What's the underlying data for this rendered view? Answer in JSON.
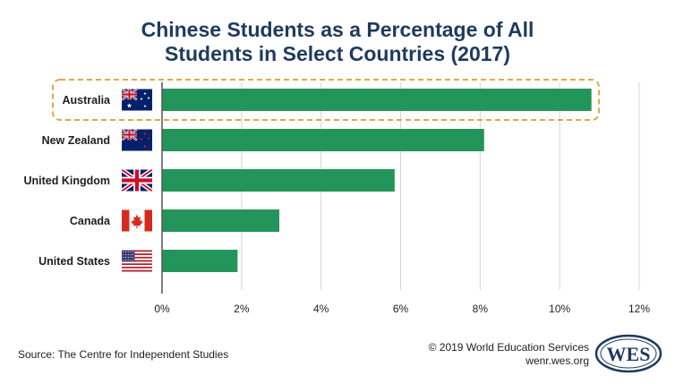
{
  "chart_data": {
    "type": "bar",
    "orientation": "horizontal",
    "title_lines": [
      "Chinese Students as a Percentage of All",
      "Students in Select Countries (2017)"
    ],
    "categories": [
      "Australia",
      "New Zealand",
      "United Kingdom",
      "Canada",
      "United States"
    ],
    "values": [
      10.8,
      8.1,
      5.85,
      2.95,
      1.9
    ],
    "flags": [
      "australia-flag",
      "new-zealand-flag",
      "united-kingdom-flag",
      "canada-flag",
      "united-states-flag"
    ],
    "highlighted_category": "Australia",
    "xlim": [
      0,
      12
    ],
    "x_ticks": [
      0,
      2,
      4,
      6,
      8,
      10,
      12
    ],
    "tick_labels": [
      "0%",
      "2%",
      "4%",
      "6%",
      "8%",
      "10%",
      "12%"
    ],
    "grid": true,
    "bar_color": "#24955a",
    "highlight_color": "#e0a84a",
    "xlabel": "",
    "ylabel": ""
  },
  "source": "Source: The Centre for Independent Studies",
  "credit": {
    "copyright": "© 2019 World Education Services",
    "url": "wenr.wes.org"
  },
  "logo": {
    "text": "WES",
    "color": "#1f3b5c"
  },
  "colors": {
    "title": "#1f3b5c",
    "grid": "#d5d5d5",
    "axis": "#555555"
  }
}
